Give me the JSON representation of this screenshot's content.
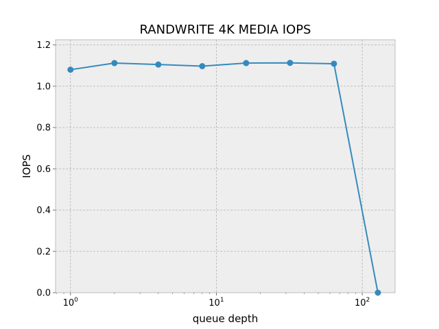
{
  "chart_data": {
    "type": "line",
    "title": "RANDWRITE 4K MEDIA IOPS",
    "xlabel": "queue depth",
    "ylabel": "IOPS",
    "xscale": "log",
    "x_major_ticks": [
      {
        "value": 1,
        "base": "10",
        "exp": "0"
      },
      {
        "value": 10,
        "base": "10",
        "exp": "1"
      },
      {
        "value": 100,
        "base": "10",
        "exp": "2"
      }
    ],
    "y_ticks": [
      0,
      0.2,
      0.4,
      0.6,
      0.8,
      1.0,
      1.2
    ],
    "y_tick_labels": [
      "0.0",
      "0.2",
      "0.4",
      "0.6",
      "0.8",
      "1.0",
      "1.2"
    ],
    "xlim": [
      0.79,
      168
    ],
    "ylim": [
      0,
      1.225
    ],
    "grid": true,
    "series": [
      {
        "x": [
          1,
          2,
          4,
          8,
          16,
          32,
          64,
          128
        ],
        "y": [
          1.08,
          1.112,
          1.105,
          1.097,
          1.112,
          1.113,
          1.109,
          0.0
        ]
      }
    ],
    "colors": {
      "line": "#348ABD",
      "plot_bg": "#EEEEEE",
      "grid": "#B2B2B2",
      "spine": "#BCBCBC"
    }
  }
}
